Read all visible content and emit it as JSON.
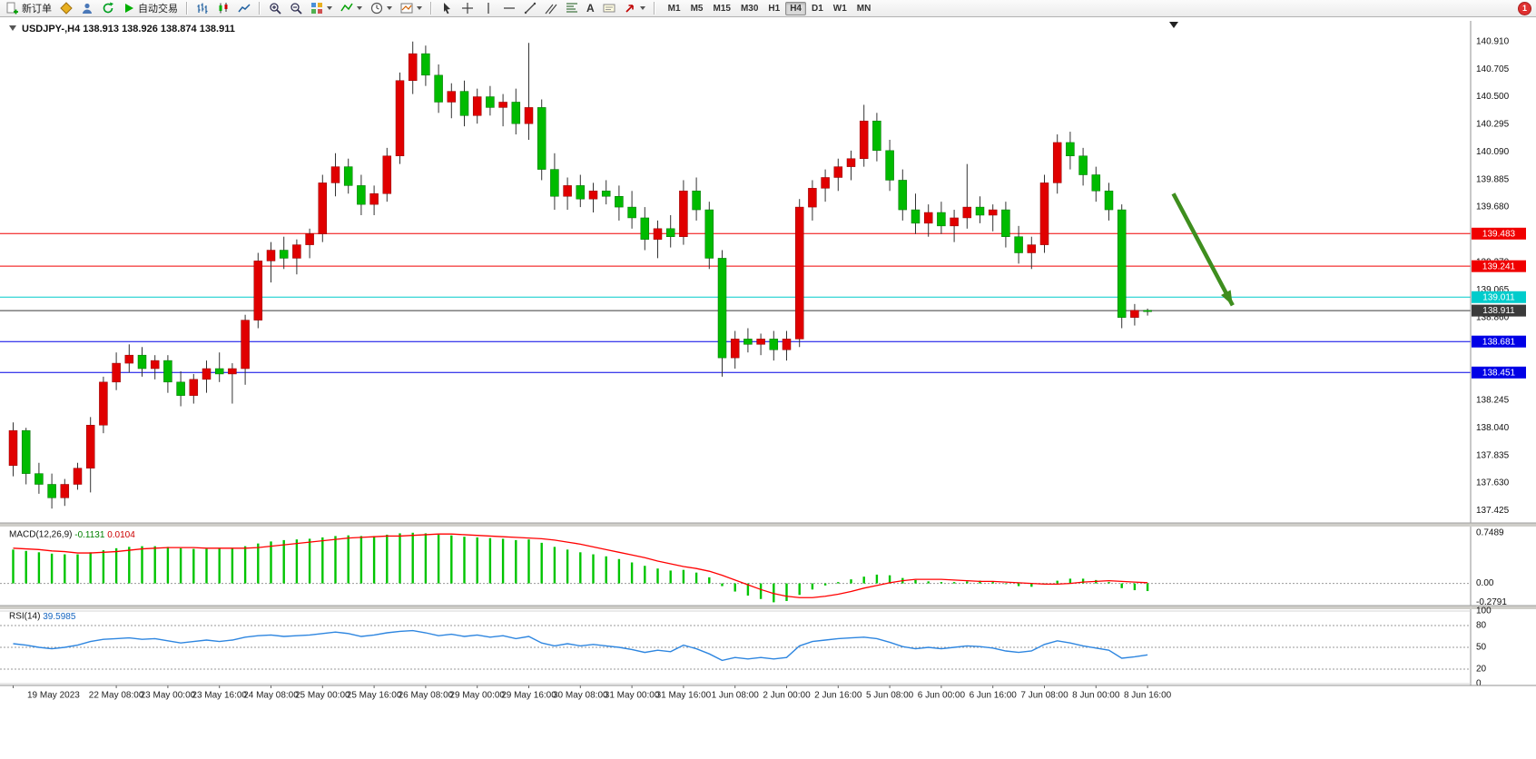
{
  "toolbar": {
    "new_order_label": "新订单",
    "auto_trade_label": "自动交易",
    "text_tool_label": "A",
    "timeframe_labels": [
      "M1",
      "M5",
      "M15",
      "M30",
      "H1",
      "H4",
      "D1",
      "W1",
      "MN"
    ],
    "active_timeframe": "H4",
    "notification_badge": "1"
  },
  "chart_data": [
    {
      "type": "candlestick",
      "symbol": "USDJPY-",
      "timeframe": "H4",
      "title": "USDJPY-,H4  138.913 138.926 138.874 138.911",
      "quote": {
        "open": "138.913",
        "high": "138.926",
        "low": "138.874",
        "close": "138.911"
      },
      "up_color": "#e00000",
      "down_color": "#00bb00",
      "ylim": [
        137.34,
        141.05
      ],
      "y_axis_labels": [
        "140.910",
        "140.705",
        "140.500",
        "140.295",
        "140.090",
        "139.885",
        "139.680",
        "139.475",
        "139.270",
        "139.065",
        "138.860",
        "138.655",
        "138.450",
        "138.245",
        "138.040",
        "137.835",
        "137.630",
        "137.425"
      ],
      "x_axis_labels": [
        {
          "label": "19 May 2023",
          "candle": 0
        },
        {
          "label": "22 May 08:00",
          "candle": 8
        },
        {
          "label": "23 May 00:00",
          "candle": 12
        },
        {
          "label": "23 May 16:00",
          "candle": 16
        },
        {
          "label": "24 May 08:00",
          "candle": 20
        },
        {
          "label": "25 May 00:00",
          "candle": 24
        },
        {
          "label": "25 May 16:00",
          "candle": 28
        },
        {
          "label": "26 May 08:00",
          "candle": 32
        },
        {
          "label": "29 May 00:00",
          "candle": 36
        },
        {
          "label": "29 May 16:00",
          "candle": 40
        },
        {
          "label": "30 May 08:00",
          "candle": 44
        },
        {
          "label": "31 May 00:00",
          "candle": 48
        },
        {
          "label": "31 May 16:00",
          "candle": 52
        },
        {
          "label": "1 Jun 08:00",
          "candle": 56
        },
        {
          "label": "2 Jun 00:00",
          "candle": 60
        },
        {
          "label": "2 Jun 16:00",
          "candle": 64
        },
        {
          "label": "5 Jun 08:00",
          "candle": 68
        },
        {
          "label": "6 Jun 00:00",
          "candle": 72
        },
        {
          "label": "6 Jun 16:00",
          "candle": 76
        },
        {
          "label": "7 Jun 08:00",
          "candle": 80
        },
        {
          "label": "8 Jun 00:00",
          "candle": 84
        },
        {
          "label": "8 Jun 16:00",
          "candle": 88
        }
      ],
      "hlines": [
        {
          "price": 139.483,
          "label": "139.483",
          "color": "#f00000"
        },
        {
          "price": 139.241,
          "label": "139.241",
          "color": "#f00000"
        },
        {
          "price": 139.011,
          "label": "139.011",
          "color": "#00cccc"
        },
        {
          "price": 138.911,
          "label": "138.911",
          "color": "#3a3a3a",
          "is_bid": true
        },
        {
          "price": 138.681,
          "label": "138.681",
          "color": "#0000e6"
        },
        {
          "price": 138.451,
          "label": "138.451",
          "color": "#0000e6"
        }
      ],
      "arrow": {
        "start_candle": 90.0,
        "start_price": 139.78,
        "end_candle": 94.6,
        "end_price": 138.95,
        "color": "#3e8e1e"
      },
      "candles": [
        [
          137.76,
          138.08,
          137.68,
          138.02
        ],
        [
          138.02,
          138.04,
          137.62,
          137.7
        ],
        [
          137.7,
          137.78,
          137.55,
          137.62
        ],
        [
          137.62,
          137.7,
          137.44,
          137.52
        ],
        [
          137.52,
          137.66,
          137.46,
          137.62
        ],
        [
          137.62,
          137.78,
          137.58,
          137.74
        ],
        [
          137.74,
          138.12,
          137.56,
          138.06
        ],
        [
          138.06,
          138.42,
          138.0,
          138.38
        ],
        [
          138.38,
          138.6,
          138.32,
          138.52
        ],
        [
          138.52,
          138.66,
          138.45,
          138.58
        ],
        [
          138.58,
          138.64,
          138.42,
          138.48
        ],
        [
          138.48,
          138.58,
          138.4,
          138.54
        ],
        [
          138.54,
          138.58,
          138.3,
          138.38
        ],
        [
          138.38,
          138.46,
          138.2,
          138.28
        ],
        [
          138.28,
          138.44,
          138.22,
          138.4
        ],
        [
          138.4,
          138.54,
          138.3,
          138.48
        ],
        [
          138.48,
          138.6,
          138.38,
          138.44
        ],
        [
          138.44,
          138.52,
          138.22,
          138.48
        ],
        [
          138.48,
          138.88,
          138.36,
          138.84
        ],
        [
          138.84,
          139.34,
          138.78,
          139.28
        ],
        [
          139.28,
          139.42,
          139.12,
          139.36
        ],
        [
          139.36,
          139.46,
          139.22,
          139.3
        ],
        [
          139.3,
          139.44,
          139.18,
          139.4
        ],
        [
          139.4,
          139.52,
          139.3,
          139.48
        ],
        [
          139.48,
          139.92,
          139.42,
          139.86
        ],
        [
          139.86,
          140.08,
          139.76,
          139.98
        ],
        [
          139.98,
          140.04,
          139.78,
          139.84
        ],
        [
          139.84,
          139.92,
          139.62,
          139.7
        ],
        [
          139.7,
          139.84,
          139.62,
          139.78
        ],
        [
          139.78,
          140.12,
          139.72,
          140.06
        ],
        [
          140.06,
          140.68,
          140.0,
          140.62
        ],
        [
          140.62,
          140.91,
          140.52,
          140.82
        ],
        [
          140.82,
          140.88,
          140.58,
          140.66
        ],
        [
          140.66,
          140.74,
          140.38,
          140.46
        ],
        [
          140.46,
          140.6,
          140.34,
          140.54
        ],
        [
          140.54,
          140.62,
          140.28,
          140.36
        ],
        [
          140.36,
          140.56,
          140.3,
          140.5
        ],
        [
          140.5,
          140.58,
          140.36,
          140.42
        ],
        [
          140.42,
          140.52,
          140.28,
          140.46
        ],
        [
          140.46,
          140.56,
          140.22,
          140.3
        ],
        [
          140.3,
          140.9,
          140.18,
          140.42
        ],
        [
          140.42,
          140.48,
          139.88,
          139.96
        ],
        [
          139.96,
          140.08,
          139.66,
          139.76
        ],
        [
          139.76,
          139.9,
          139.66,
          139.84
        ],
        [
          139.84,
          139.92,
          139.68,
          139.74
        ],
        [
          139.74,
          139.86,
          139.64,
          139.8
        ],
        [
          139.8,
          139.88,
          139.7,
          139.76
        ],
        [
          139.76,
          139.84,
          139.58,
          139.68
        ],
        [
          139.68,
          139.8,
          139.52,
          139.6
        ],
        [
          139.6,
          139.68,
          139.36,
          139.44
        ],
        [
          139.44,
          139.58,
          139.3,
          139.52
        ],
        [
          139.52,
          139.62,
          139.38,
          139.46
        ],
        [
          139.46,
          139.88,
          139.4,
          139.8
        ],
        [
          139.8,
          139.9,
          139.58,
          139.66
        ],
        [
          139.66,
          139.72,
          139.22,
          139.3
        ],
        [
          139.3,
          139.36,
          138.42,
          138.56
        ],
        [
          138.56,
          138.76,
          138.48,
          138.7
        ],
        [
          138.7,
          138.78,
          138.6,
          138.66
        ],
        [
          138.66,
          138.74,
          138.58,
          138.7
        ],
        [
          138.7,
          138.76,
          138.54,
          138.62
        ],
        [
          138.62,
          138.76,
          138.54,
          138.7
        ],
        [
          138.7,
          139.74,
          138.64,
          139.68
        ],
        [
          139.68,
          139.88,
          139.58,
          139.82
        ],
        [
          139.82,
          139.96,
          139.72,
          139.9
        ],
        [
          139.9,
          140.04,
          139.8,
          139.98
        ],
        [
          139.98,
          140.1,
          139.88,
          140.04
        ],
        [
          140.04,
          140.44,
          139.98,
          140.32
        ],
        [
          140.32,
          140.38,
          140.02,
          140.1
        ],
        [
          140.1,
          140.18,
          139.8,
          139.88
        ],
        [
          139.88,
          139.96,
          139.58,
          139.66
        ],
        [
          139.66,
          139.78,
          139.48,
          139.56
        ],
        [
          139.56,
          139.7,
          139.46,
          139.64
        ],
        [
          139.64,
          139.72,
          139.48,
          139.54
        ],
        [
          139.54,
          139.66,
          139.42,
          139.6
        ],
        [
          139.6,
          140.0,
          139.52,
          139.68
        ],
        [
          139.68,
          139.76,
          139.56,
          139.62
        ],
        [
          139.62,
          139.7,
          139.5,
          139.66
        ],
        [
          139.66,
          139.72,
          139.38,
          139.46
        ],
        [
          139.46,
          139.54,
          139.26,
          139.34
        ],
        [
          139.34,
          139.46,
          139.22,
          139.4
        ],
        [
          139.4,
          139.92,
          139.34,
          139.86
        ],
        [
          139.86,
          140.22,
          139.78,
          140.16
        ],
        [
          140.16,
          140.24,
          139.96,
          140.06
        ],
        [
          140.06,
          140.12,
          139.84,
          139.92
        ],
        [
          139.92,
          139.98,
          139.72,
          139.8
        ],
        [
          139.8,
          139.86,
          139.58,
          139.66
        ],
        [
          139.66,
          139.7,
          138.78,
          138.86
        ],
        [
          138.86,
          138.96,
          138.8,
          138.913
        ],
        [
          138.913,
          138.926,
          138.874,
          138.911
        ]
      ]
    },
    {
      "type": "macd",
      "label": "MACD(12,26,9)",
      "value_main": "-0.1131",
      "value_signal": "0.0104",
      "axis_labels": [
        "0.7489",
        "0.00",
        "-0.2791"
      ],
      "ylim": [
        -0.3,
        0.8
      ],
      "hist_color": "#00c400",
      "signal_color": "#ff0000",
      "histogram": [
        0.5,
        0.48,
        0.46,
        0.44,
        0.43,
        0.43,
        0.46,
        0.49,
        0.52,
        0.54,
        0.55,
        0.55,
        0.54,
        0.52,
        0.51,
        0.51,
        0.52,
        0.52,
        0.55,
        0.59,
        0.62,
        0.64,
        0.65,
        0.66,
        0.68,
        0.7,
        0.71,
        0.7,
        0.7,
        0.72,
        0.74,
        0.7489,
        0.74,
        0.72,
        0.71,
        0.69,
        0.68,
        0.67,
        0.66,
        0.64,
        0.65,
        0.6,
        0.54,
        0.5,
        0.46,
        0.43,
        0.4,
        0.36,
        0.31,
        0.26,
        0.22,
        0.19,
        0.2,
        0.16,
        0.09,
        -0.04,
        -0.12,
        -0.18,
        -0.23,
        -0.2791,
        -0.26,
        -0.17,
        -0.09,
        -0.03,
        0.02,
        0.06,
        0.1,
        0.13,
        0.12,
        0.08,
        0.05,
        0.03,
        0.02,
        0.02,
        0.03,
        0.04,
        0.02,
        -0.01,
        -0.04,
        -0.05,
        -0.01,
        0.04,
        0.07,
        0.07,
        0.05,
        0.02,
        -0.07,
        -0.1,
        -0.1131
      ],
      "signal": [
        0.52,
        0.51,
        0.5,
        0.48,
        0.47,
        0.45,
        0.45,
        0.46,
        0.47,
        0.49,
        0.51,
        0.52,
        0.53,
        0.53,
        0.53,
        0.52,
        0.52,
        0.52,
        0.52,
        0.53,
        0.55,
        0.57,
        0.59,
        0.61,
        0.63,
        0.65,
        0.67,
        0.68,
        0.69,
        0.7,
        0.7,
        0.71,
        0.72,
        0.73,
        0.73,
        0.72,
        0.71,
        0.7,
        0.69,
        0.68,
        0.67,
        0.66,
        0.64,
        0.61,
        0.58,
        0.54,
        0.5,
        0.46,
        0.42,
        0.38,
        0.33,
        0.29,
        0.25,
        0.22,
        0.18,
        0.12,
        0.05,
        -0.02,
        -0.09,
        -0.15,
        -0.19,
        -0.21,
        -0.21,
        -0.19,
        -0.16,
        -0.12,
        -0.07,
        -0.03,
        0.01,
        0.04,
        0.06,
        0.06,
        0.06,
        0.05,
        0.04,
        0.03,
        0.03,
        0.02,
        0.01,
        0.0,
        -0.01,
        -0.01,
        0.0,
        0.02,
        0.03,
        0.04,
        0.03,
        0.02,
        0.0104
      ]
    },
    {
      "type": "rsi",
      "label": "RSI(14)",
      "value": "39.5985",
      "levels": [
        "100",
        "80",
        "50",
        "20",
        "0"
      ],
      "line_color": "#2e86e0",
      "values": [
        55,
        53,
        50,
        48,
        50,
        53,
        58,
        61,
        62,
        63,
        61,
        62,
        59,
        56,
        58,
        60,
        58,
        60,
        64,
        66,
        67,
        65,
        66,
        67,
        69,
        71,
        69,
        65,
        67,
        70,
        72,
        73,
        70,
        66,
        68,
        65,
        67,
        64,
        66,
        62,
        65,
        56,
        52,
        55,
        52,
        54,
        52,
        50,
        47,
        43,
        46,
        44,
        53,
        48,
        41,
        32,
        36,
        34,
        36,
        34,
        36,
        52,
        58,
        60,
        62,
        63,
        64,
        62,
        57,
        51,
        48,
        50,
        48,
        50,
        52,
        51,
        49,
        45,
        43,
        45,
        54,
        59,
        56,
        52,
        49,
        46,
        35,
        37,
        39.6
      ]
    }
  ]
}
